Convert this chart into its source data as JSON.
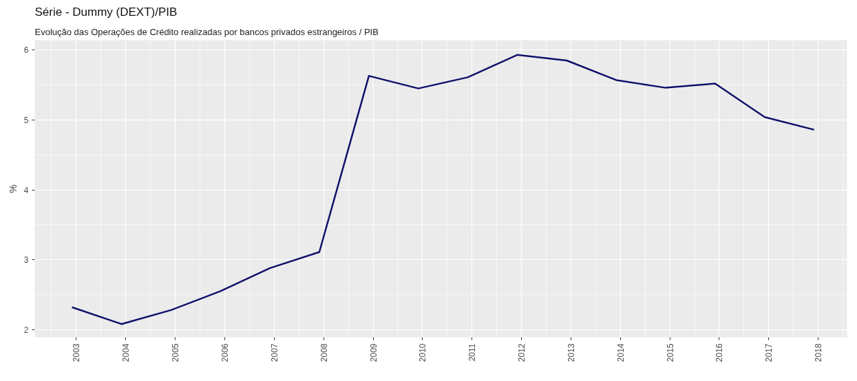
{
  "chart_data": {
    "type": "line",
    "title": "Série - Dummy (DEXT)/PIB",
    "subtitle": "Evolução das Operações de Crédito realizadas por bancos privados estrangeiros / PIB",
    "ylabel": "%",
    "x": [
      "2002-12",
      "2003-12",
      "2004-12",
      "2005-12",
      "2006-12",
      "2007-12",
      "2008-12",
      "2009-12",
      "2010-12",
      "2011-12",
      "2012-12",
      "2013-12",
      "2014-12",
      "2015-12",
      "2016-12",
      "2017-12"
    ],
    "series": [
      {
        "color": "#10106b",
        "values": [
          2.32,
          2.08,
          2.28,
          2.55,
          2.88,
          3.11,
          5.63,
          5.45,
          5.61,
          5.93,
          5.85,
          5.57,
          5.46,
          5.52,
          5.04,
          4.86
        ]
      }
    ],
    "xlim": [
      "2002-03",
      "2018-08"
    ],
    "ylim": [
      1.89,
      6.14
    ],
    "xticks": [
      "2003",
      "2004",
      "2005",
      "2006",
      "2007",
      "2008",
      "2009",
      "2010",
      "2011",
      "2012",
      "2013",
      "2014",
      "2015",
      "2016",
      "2017",
      "2018"
    ],
    "yticks": [
      2,
      3,
      4,
      5,
      6
    ],
    "grid": true,
    "marker": "none",
    "line_style": "solid"
  }
}
